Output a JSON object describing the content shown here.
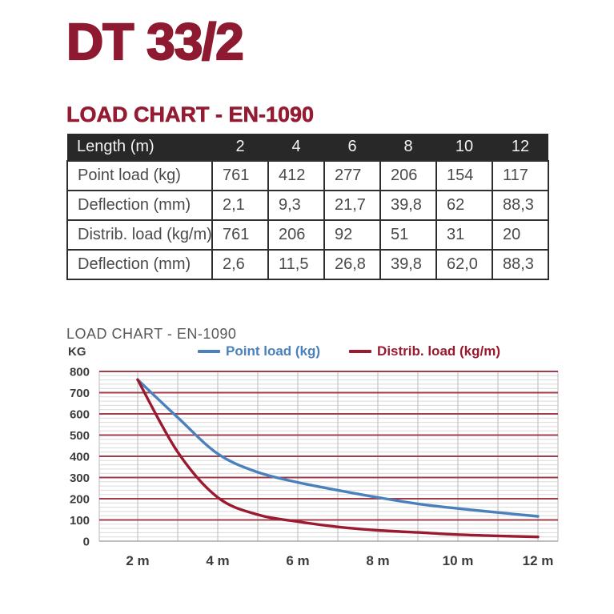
{
  "page_title": "DT 33/2",
  "section_heading": "LOAD CHART - EN-1090",
  "table": {
    "columns": [
      "Length (m)",
      "2",
      "4",
      "6",
      "8",
      "10",
      "12"
    ],
    "rows": [
      {
        "label": "Point load (kg)",
        "values": [
          "761",
          "412",
          "277",
          "206",
          "154",
          "117"
        ]
      },
      {
        "label": "Deflection (mm)",
        "values": [
          "2,1",
          "9,3",
          "21,7",
          "39,8",
          "62",
          "88,3"
        ]
      },
      {
        "label": "Distrib. load (kg/m)",
        "values": [
          "761",
          "206",
          "92",
          "51",
          "31",
          "20"
        ]
      },
      {
        "label": "Deflection (mm)",
        "values": [
          "2,6",
          "11,5",
          "26,8",
          "39,8",
          "62,0",
          "88,3"
        ]
      }
    ]
  },
  "chart": {
    "title": "LOAD CHART - EN-1090",
    "y_axis_unit": "KG",
    "legend": [
      {
        "label": "Point load (kg)",
        "color": "#4a81bd"
      },
      {
        "label": "Distrib. load (kg/m)",
        "color": "#9a1b2f"
      }
    ]
  },
  "chart_data": {
    "type": "line",
    "title": "LOAD CHART - EN-1090",
    "ylabel": "KG",
    "ylim": [
      0,
      800
    ],
    "y_major_step": 100,
    "y_minor_step": 20,
    "x_ticks": [
      2,
      4,
      6,
      8,
      10,
      12
    ],
    "x_tick_labels": [
      "2 m",
      "4 m",
      "6 m",
      "8 m",
      "10 m",
      "12 m"
    ],
    "x_minor_step": 1,
    "grid": true,
    "legend_position": "top",
    "series": [
      {
        "name": "Point load (kg)",
        "color": "#4a81bd",
        "x": [
          2,
          4,
          6,
          8,
          10,
          12
        ],
        "values": [
          761,
          412,
          277,
          206,
          154,
          117
        ]
      },
      {
        "name": "Distrib. load (kg/m)",
        "color": "#9a1b2f",
        "x": [
          2,
          4,
          6,
          8,
          10,
          12
        ],
        "values": [
          761,
          206,
          92,
          51,
          31,
          20
        ]
      }
    ],
    "smoothed_samples": {
      "x": [
        2,
        3,
        4,
        5,
        6,
        7,
        8,
        9,
        10,
        11,
        12
      ],
      "series": [
        [
          761,
          583,
          412,
          325,
          277,
          240,
          206,
          176,
          154,
          135,
          117
        ],
        [
          761,
          420,
          206,
          125,
          92,
          67,
          51,
          41,
          31,
          25,
          20
        ]
      ]
    },
    "grid_colors": {
      "major_h": "#a23c4a",
      "minor_h": "#d9d9d9",
      "vertical": "#c5c5c5",
      "axis_zero": "#a8a8a8"
    }
  },
  "colors": {
    "brand_red": "#8e1a31",
    "heading_red": "#951b33",
    "table_header_bg": "#282828",
    "table_border": "#2e2e2e",
    "axis_text": "#3c3c3c"
  }
}
